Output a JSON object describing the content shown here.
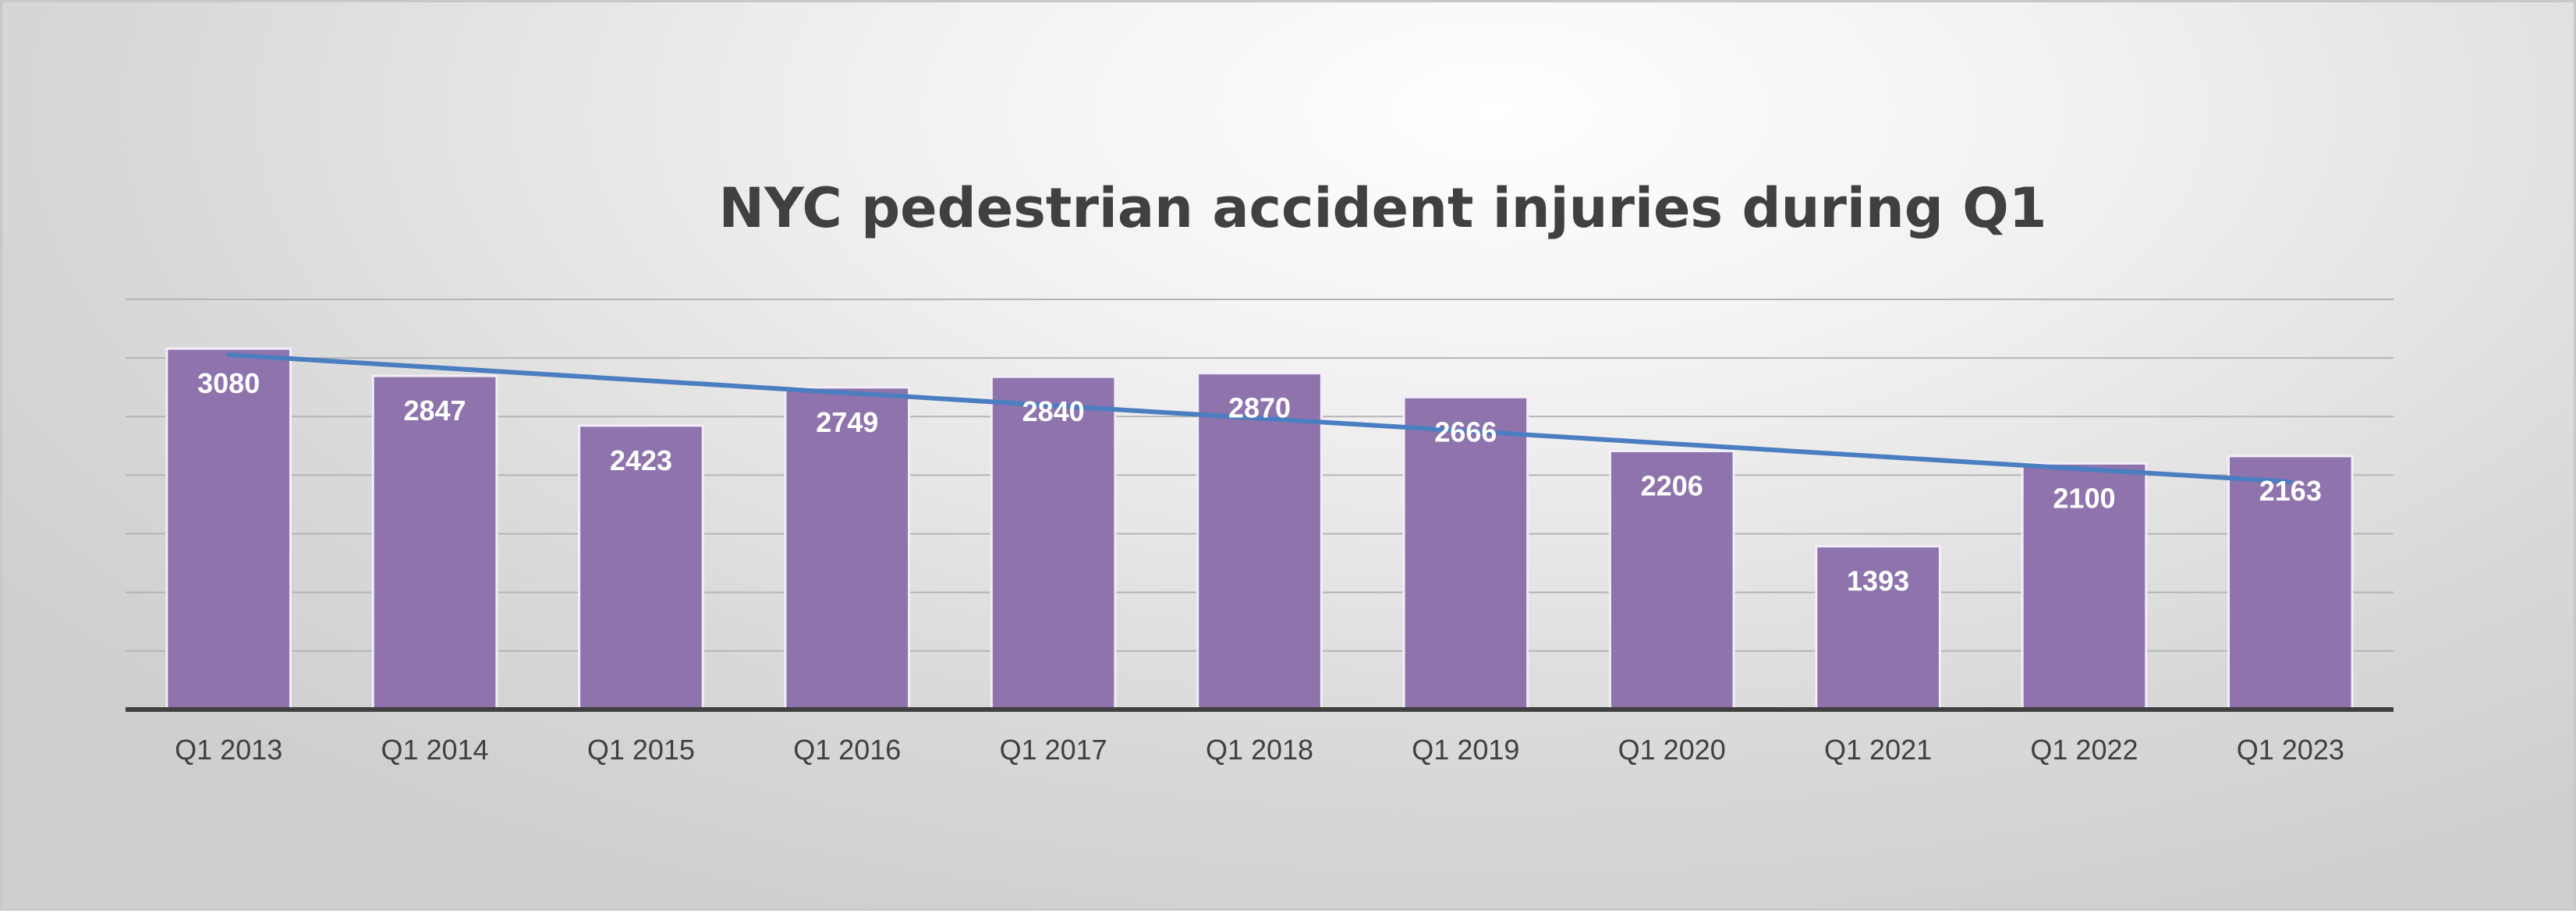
{
  "chart_data": {
    "type": "bar",
    "title": "NYC pedestrian accident injuries during Q1",
    "xlabel": "",
    "ylabel": "",
    "categories": [
      "Q1 2013",
      "Q1 2014",
      "Q1 2015",
      "Q1 2016",
      "Q1 2017",
      "Q1 2018",
      "Q1 2019",
      "Q1 2020",
      "Q1 2021",
      "Q1 2022",
      "Q1 2023"
    ],
    "series": [
      {
        "values": [
          3080,
          2847,
          2423,
          2749,
          2840,
          2870,
          2666,
          2206,
          1393,
          2100,
          2163
        ]
      }
    ],
    "trendline": {
      "type": "linear"
    },
    "ylim": [
      0,
      3500
    ],
    "ytick_step": 500,
    "y_tick_labels_shown": false,
    "data_labels": true,
    "grid": true,
    "legend": "none",
    "colors": {
      "bar": "#8e73ad",
      "bar_border": "#f3eef8",
      "trendline": "#4a7ec0",
      "gridline": "#b5b5b5",
      "axis": "#404040",
      "title": "#404040",
      "tick_label": "#404040",
      "data_label": "#ffffff"
    }
  }
}
